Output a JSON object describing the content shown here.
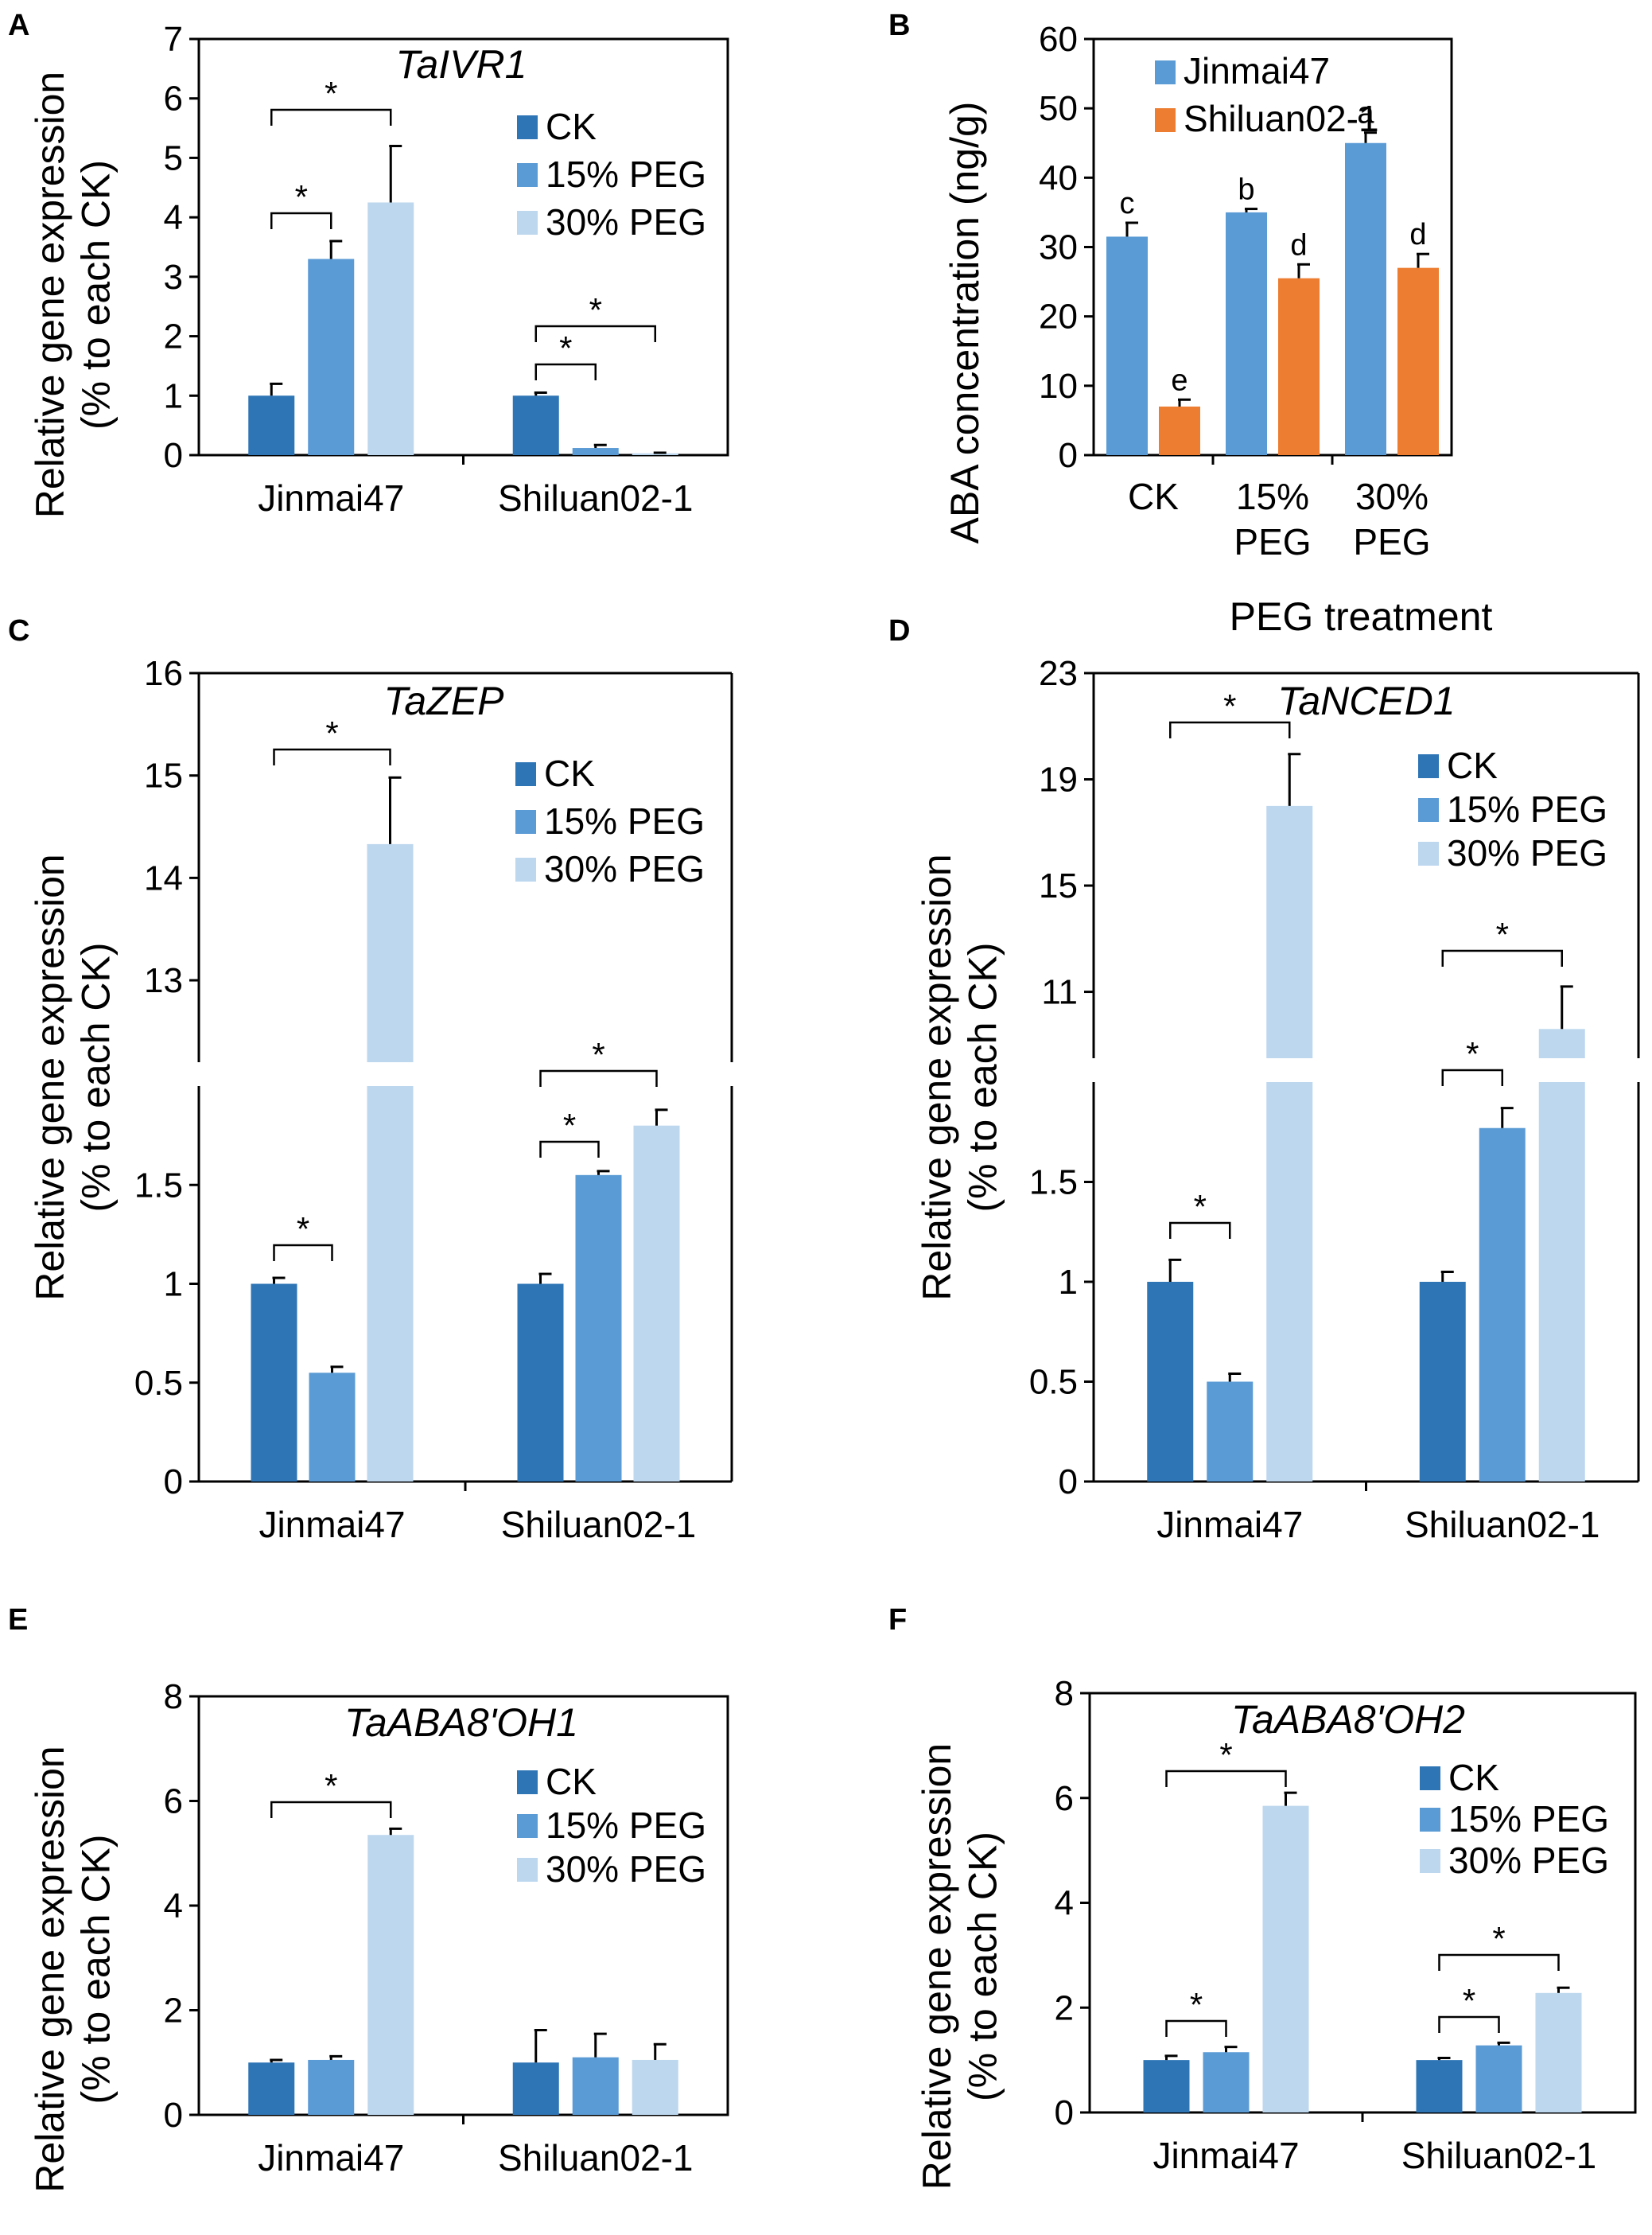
{
  "colors": {
    "ck": "#2e75b6",
    "peg15": "#5b9bd5",
    "peg30": "#bdd7ee",
    "jinmai47": "#5b9bd5",
    "shiluan": "#ed7d31",
    "errorbar": "#000000",
    "errorbar_light": "#7f7f7f"
  },
  "legend": [
    "CK",
    "15% PEG",
    "30% PEG"
  ],
  "chart_data": [
    {
      "panel": "A",
      "type": "bar",
      "title": "TaIVR1",
      "ylabel": "Relative gene expression (% to each CK)",
      "ylim": [
        0,
        7
      ],
      "yticks": [
        0,
        1,
        2,
        3,
        4,
        5,
        6,
        7
      ],
      "categories": [
        "Jinmai47",
        "Shiluan02-1"
      ],
      "series": [
        {
          "name": "CK",
          "values": [
            1.0,
            1.0
          ],
          "errors": [
            0.2,
            0.05
          ]
        },
        {
          "name": "15% PEG",
          "values": [
            3.3,
            0.12
          ],
          "errors": [
            0.3,
            0.05
          ]
        },
        {
          "name": "30% PEG",
          "values": [
            4.25,
            0.03
          ],
          "errors": [
            0.95,
            0.01
          ]
        }
      ],
      "significance": [
        "*",
        "*",
        "*",
        "*"
      ]
    },
    {
      "panel": "B",
      "type": "bar",
      "title": "",
      "ylabel": "ABA concentration (ng/g)",
      "xlabel": "PEG treatment",
      "ylim": [
        0,
        60
      ],
      "yticks": [
        0,
        10,
        20,
        30,
        40,
        50,
        60
      ],
      "categories": [
        "CK",
        "15% PEG",
        "30% PEG"
      ],
      "category_lines": [
        [
          "CK"
        ],
        [
          "15%",
          "PEG"
        ],
        [
          "30%",
          "PEG"
        ]
      ],
      "series": [
        {
          "name": "Jinmai47",
          "values": [
            31.5,
            35.0,
            45.0
          ],
          "errors": [
            2.0,
            0.5,
            1.5
          ],
          "letters": [
            "c",
            "b",
            "a"
          ]
        },
        {
          "name": "Shiluan02-1",
          "values": [
            7.0,
            25.5,
            27.0
          ],
          "errors": [
            1.0,
            2.0,
            2.0
          ],
          "letters": [
            "e",
            "d",
            "d"
          ]
        }
      ]
    },
    {
      "panel": "C",
      "type": "bar",
      "title": "TaZEP",
      "ylabel": "Relative gene expression (% to each CK)",
      "ylim_lower": [
        0,
        2.0
      ],
      "ylim_upper": [
        12.2,
        16
      ],
      "yticks_lower": [
        0,
        0.5,
        1,
        1.5
      ],
      "yticks_upper": [
        13,
        14,
        15,
        16
      ],
      "categories": [
        "Jinmai47",
        "Shiluan02-1"
      ],
      "series": [
        {
          "name": "CK",
          "values": [
            1.0,
            1.0
          ],
          "errors": [
            0.03,
            0.05
          ]
        },
        {
          "name": "15% PEG",
          "values": [
            0.55,
            1.55
          ],
          "errors": [
            0.03,
            0.02
          ]
        },
        {
          "name": "30% PEG",
          "values": [
            14.33,
            1.8
          ],
          "errors": [
            0.65,
            0.08
          ]
        }
      ],
      "significance": [
        "*",
        "*",
        "*",
        "*"
      ]
    },
    {
      "panel": "D",
      "type": "bar",
      "title": "TaNCED1",
      "ylabel": "Relative gene expression (% to each CK)",
      "ylim_lower": [
        0,
        2.0
      ],
      "ylim_upper": [
        8.5,
        23
      ],
      "yticks_lower": [
        0,
        0.5,
        1,
        1.5
      ],
      "yticks_upper": [
        11,
        15,
        19,
        23
      ],
      "categories": [
        "Jinmai47",
        "Shiluan02-1"
      ],
      "series": [
        {
          "name": "CK",
          "values": [
            1.0,
            1.0
          ],
          "errors": [
            0.11,
            0.05
          ]
        },
        {
          "name": "15% PEG",
          "values": [
            0.5,
            1.77
          ],
          "errors": [
            0.04,
            0.1
          ]
        },
        {
          "name": "30% PEG",
          "values": [
            18.0,
            9.6
          ],
          "errors": [
            1.95,
            1.6
          ]
        }
      ],
      "significance": [
        "*",
        "*",
        "*",
        "*"
      ]
    },
    {
      "panel": "E",
      "type": "bar",
      "title": "TaABA8'OH1",
      "ylabel": "Relative gene expression (% to each CK)",
      "ylim": [
        0,
        8
      ],
      "yticks": [
        0,
        2,
        4,
        6,
        8
      ],
      "categories": [
        "Jinmai47",
        "Shiluan02-1"
      ],
      "series": [
        {
          "name": "CK",
          "values": [
            1.0,
            1.0
          ],
          "errors": [
            0.05,
            0.62
          ]
        },
        {
          "name": "15% PEG",
          "values": [
            1.05,
            1.1
          ],
          "errors": [
            0.07,
            0.45
          ]
        },
        {
          "name": "30% PEG",
          "values": [
            5.35,
            1.05
          ],
          "errors": [
            0.12,
            0.3
          ]
        }
      ],
      "significance": [
        "*"
      ]
    },
    {
      "panel": "F",
      "type": "bar",
      "title": "TaABA8'OH2",
      "ylabel": "Relative gene expression (% to each CK)",
      "ylim": [
        0,
        8
      ],
      "yticks": [
        0,
        2,
        4,
        6,
        8
      ],
      "categories": [
        "Jinmai47",
        "Shiluan02-1"
      ],
      "series": [
        {
          "name": "CK",
          "values": [
            1.0,
            1.0
          ],
          "errors": [
            0.08,
            0.04
          ]
        },
        {
          "name": "15% PEG",
          "values": [
            1.15,
            1.28
          ],
          "errors": [
            0.1,
            0.05
          ]
        },
        {
          "name": "30% PEG",
          "values": [
            5.85,
            2.28
          ],
          "errors": [
            0.25,
            0.1
          ]
        }
      ],
      "significance": [
        "*",
        "*",
        "*",
        "*"
      ]
    }
  ]
}
